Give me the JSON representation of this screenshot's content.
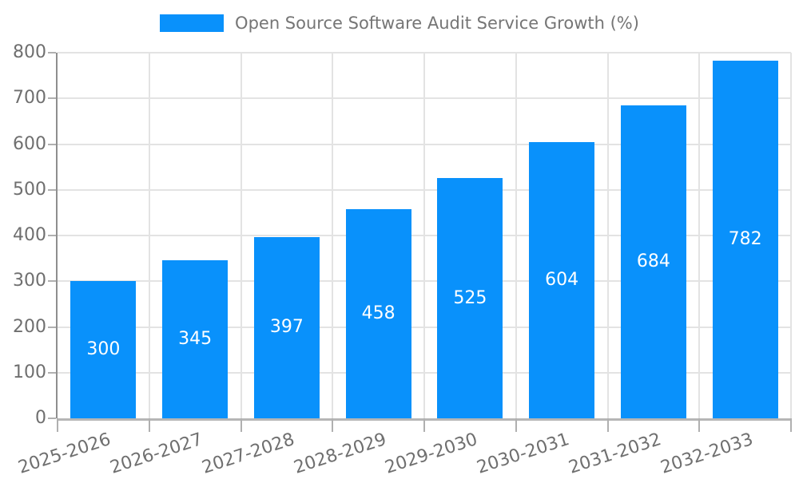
{
  "chart_data": {
    "type": "bar",
    "title": "Open Source Software Audit Service Growth (%)",
    "legend_position": "top-center",
    "categories": [
      "2025-2026",
      "2026-2027",
      "2027-2028",
      "2028-2029",
      "2029-2030",
      "2030-2031",
      "2031-2032",
      "2032-2033"
    ],
    "values": [
      300,
      345,
      397,
      458,
      525,
      604,
      684,
      782
    ],
    "ylabel": "",
    "xlabel": "",
    "ylim": [
      0,
      800
    ],
    "ytick_step": 100,
    "ytick_labels": [
      "0",
      "100",
      "200",
      "300",
      "400",
      "500",
      "600",
      "700",
      "800"
    ],
    "grid": true,
    "value_labels_inside_bars": true,
    "x_label_rotation_deg": -18,
    "colors": {
      "bar": "#0991fb",
      "grid": "#e3e3e3",
      "axis_line": "#8f8f8f",
      "bottom_axis_line": "#b6b6b6",
      "tick": "#b0b0b0",
      "text": "#6f6f6f",
      "legend_text": "#757575",
      "value_label": "#ffffff",
      "background": "#ffffff"
    }
  }
}
